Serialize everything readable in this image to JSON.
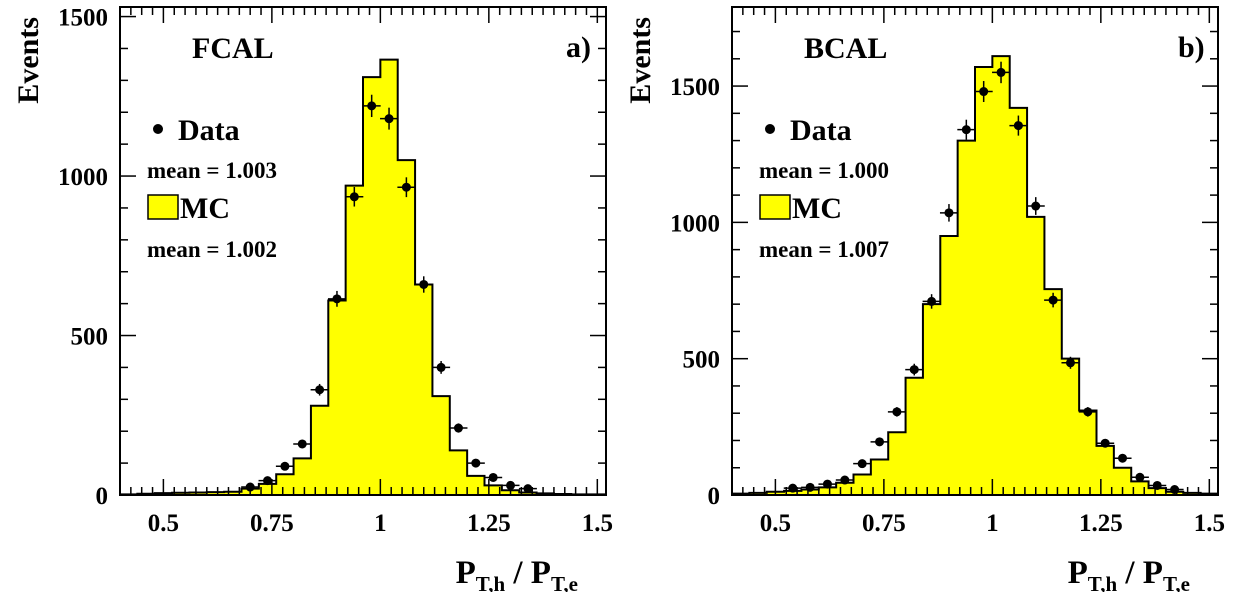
{
  "chart_data": [
    {
      "type": "histogram",
      "panel_label": "a)",
      "detector_label": "FCAL",
      "ylabel": "Events",
      "xlabel_main_1": "P",
      "xlabel_sub_1": "T,h",
      "xlabel_sep": " / P",
      "xlabel_sub_2": "T,e",
      "xlim": [
        0.4,
        1.52
      ],
      "ylim": [
        0,
        1530
      ],
      "x_ticks": [
        0.5,
        0.75,
        1,
        1.25,
        1.5
      ],
      "x_tick_labels": [
        "0.5",
        "0.75",
        "1",
        "1.25",
        "1.5"
      ],
      "y_ticks": [
        0,
        500,
        1000,
        1500
      ],
      "y_tick_labels": [
        "0",
        "500",
        "1000",
        "1500"
      ],
      "legend": {
        "data_label": "Data",
        "data_mean": "mean = 1.003",
        "mc_label": "MC",
        "mc_mean": "mean = 1.002"
      },
      "mc_color": "#ffff00",
      "bin_width": 0.04,
      "bin_edges_start": 0.4,
      "mc_values": [
        2,
        4,
        6,
        7,
        8,
        9,
        10,
        20,
        35,
        65,
        115,
        280,
        610,
        970,
        1310,
        1365,
        1050,
        660,
        310,
        140,
        60,
        30,
        15,
        8,
        5,
        3,
        2,
        2
      ],
      "data_points": [
        {
          "x": 0.7,
          "y": 25
        },
        {
          "x": 0.74,
          "y": 45
        },
        {
          "x": 0.78,
          "y": 90
        },
        {
          "x": 0.82,
          "y": 160
        },
        {
          "x": 0.86,
          "y": 330
        },
        {
          "x": 0.9,
          "y": 615
        },
        {
          "x": 0.94,
          "y": 935
        },
        {
          "x": 0.98,
          "y": 1220
        },
        {
          "x": 1.02,
          "y": 1180
        },
        {
          "x": 1.06,
          "y": 965
        },
        {
          "x": 1.1,
          "y": 660
        },
        {
          "x": 1.14,
          "y": 400
        },
        {
          "x": 1.18,
          "y": 210
        },
        {
          "x": 1.22,
          "y": 100
        },
        {
          "x": 1.26,
          "y": 55
        },
        {
          "x": 1.3,
          "y": 30
        },
        {
          "x": 1.34,
          "y": 20
        }
      ]
    },
    {
      "type": "histogram",
      "panel_label": "b)",
      "detector_label": "BCAL",
      "ylabel": "Events",
      "xlabel_main_1": "P",
      "xlabel_sub_1": "T,h",
      "xlabel_sep": " / P",
      "xlabel_sub_2": "T,e",
      "xlim": [
        0.4,
        1.52
      ],
      "ylim": [
        0,
        1790
      ],
      "x_ticks": [
        0.5,
        0.75,
        1,
        1.25,
        1.5
      ],
      "x_tick_labels": [
        "0.5",
        "0.75",
        "1",
        "1.25",
        "1.5"
      ],
      "y_ticks": [
        0,
        500,
        1000,
        1500
      ],
      "y_tick_labels": [
        "0",
        "500",
        "1000",
        "1500"
      ],
      "legend": {
        "data_label": "Data",
        "data_mean": "mean = 1.000",
        "mc_label": "MC",
        "mc_mean": "mean = 1.007"
      },
      "mc_color": "#ffff00",
      "bin_width": 0.04,
      "bin_edges_start": 0.4,
      "mc_values": [
        5,
        8,
        12,
        15,
        20,
        28,
        45,
        75,
        130,
        230,
        430,
        700,
        950,
        1300,
        1570,
        1610,
        1420,
        1020,
        755,
        500,
        310,
        180,
        100,
        50,
        25,
        12,
        8,
        5
      ],
      "data_points": [
        {
          "x": 0.54,
          "y": 25
        },
        {
          "x": 0.58,
          "y": 28
        },
        {
          "x": 0.62,
          "y": 40
        },
        {
          "x": 0.66,
          "y": 55
        },
        {
          "x": 0.7,
          "y": 115
        },
        {
          "x": 0.74,
          "y": 195
        },
        {
          "x": 0.78,
          "y": 305
        },
        {
          "x": 0.82,
          "y": 460
        },
        {
          "x": 0.86,
          "y": 710
        },
        {
          "x": 0.9,
          "y": 1035
        },
        {
          "x": 0.94,
          "y": 1340
        },
        {
          "x": 0.98,
          "y": 1480
        },
        {
          "x": 1.02,
          "y": 1550
        },
        {
          "x": 1.06,
          "y": 1355
        },
        {
          "x": 1.1,
          "y": 1060
        },
        {
          "x": 1.14,
          "y": 715
        },
        {
          "x": 1.18,
          "y": 485
        },
        {
          "x": 1.22,
          "y": 305
        },
        {
          "x": 1.26,
          "y": 190
        },
        {
          "x": 1.3,
          "y": 135
        },
        {
          "x": 1.34,
          "y": 65
        },
        {
          "x": 1.38,
          "y": 35
        },
        {
          "x": 1.42,
          "y": 20
        }
      ]
    }
  ]
}
